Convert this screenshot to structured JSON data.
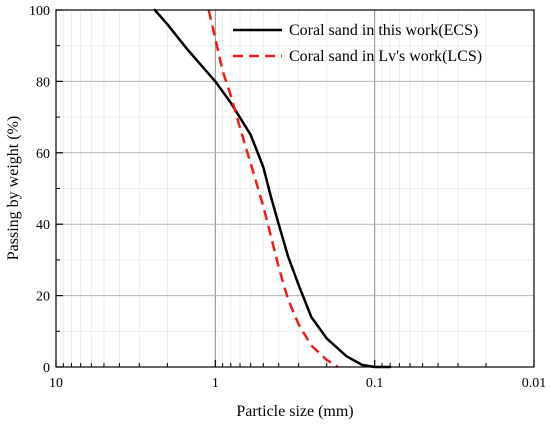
{
  "chart_data": {
    "type": "line",
    "xlabel": "Particle size (mm)",
    "ylabel": "Passing by weight (%)",
    "x_scale": "log",
    "x_reversed": true,
    "xlim": [
      10,
      0.01
    ],
    "ylim": [
      0,
      100
    ],
    "x_ticks": [
      10,
      1,
      0.1,
      0.01
    ],
    "x_tick_labels": [
      "10",
      "1",
      "0.1",
      "0.01"
    ],
    "y_ticks": [
      0,
      20,
      40,
      60,
      80,
      100
    ],
    "y_tick_labels": [
      "0",
      "20",
      "40",
      "60",
      "80",
      "100"
    ],
    "grid": true,
    "legend_position": "top-right",
    "series": [
      {
        "name": "Coral sand in this work(ECS)",
        "color": "#000000",
        "style": "solid",
        "x": [
          2.4,
          2.0,
          1.5,
          1.0,
          0.8,
          0.6,
          0.5,
          0.45,
          0.4,
          0.35,
          0.3,
          0.25,
          0.2,
          0.15,
          0.12,
          0.1,
          0.09,
          0.08
        ],
        "y": [
          100,
          96,
          89,
          80,
          74,
          65,
          56,
          48,
          40,
          31,
          23,
          14,
          8,
          3,
          0.6,
          0,
          0,
          0
        ]
      },
      {
        "name": "Coral sand in Lv's work(LCS)",
        "color": "#ee1c1c",
        "style": "dashed",
        "x": [
          1.1,
          1.0,
          0.9,
          0.8,
          0.7,
          0.6,
          0.5,
          0.45,
          0.4,
          0.35,
          0.3,
          0.25,
          0.2,
          0.17
        ],
        "y": [
          100,
          92,
          83,
          76,
          67,
          57,
          45,
          37,
          28,
          19,
          12,
          6,
          2,
          0
        ]
      }
    ]
  }
}
